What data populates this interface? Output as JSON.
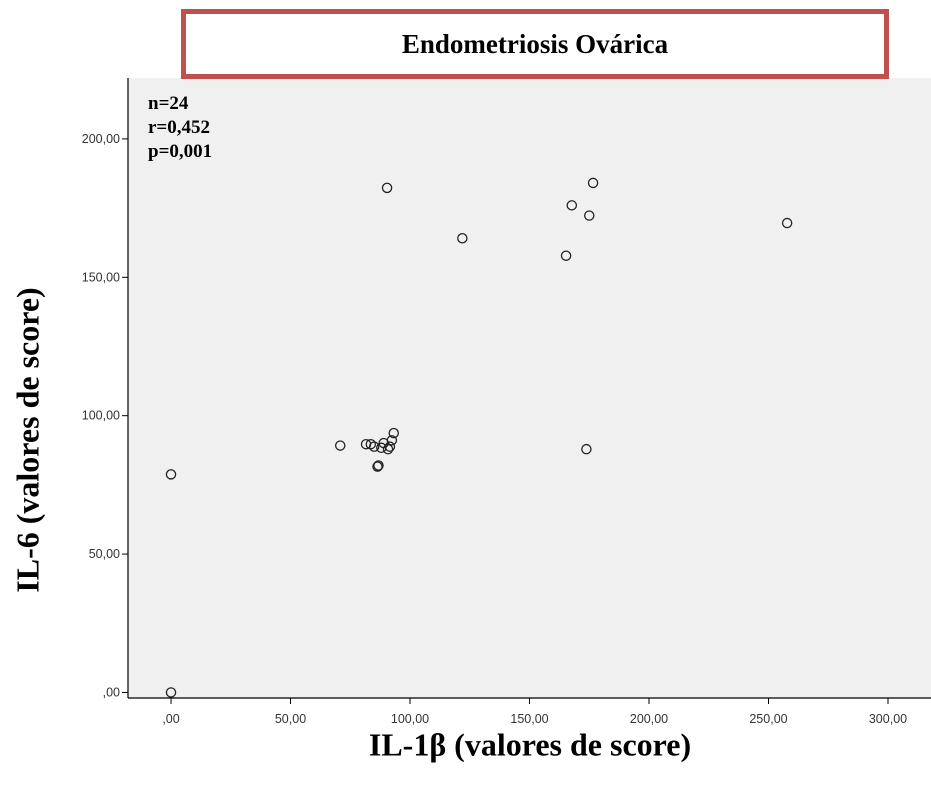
{
  "chart_data": {
    "type": "scatter",
    "title": "Endometriosis Ovárica",
    "xlabel": "IL-1β (valores de score)",
    "ylabel": "IL-6 (valores de score)",
    "xlim": [
      -18,
      318
    ],
    "ylim": [
      -2,
      222
    ],
    "xticks": [
      0,
      50,
      100,
      150,
      200,
      250,
      300
    ],
    "xtick_labels": [
      ",00",
      "50,00",
      "100,00",
      "150,00",
      "200,00",
      "250,00",
      "300,00"
    ],
    "yticks": [
      0,
      50,
      100,
      150,
      200
    ],
    "ytick_labels": [
      ",00",
      "50,00",
      "100,00",
      "150,00",
      "200,00"
    ],
    "grid": false,
    "background_color": "#f0f0f0",
    "marker": "open-circle",
    "annotations": [
      "n=24",
      "r=0,452",
      "p=0,001"
    ],
    "points": [
      {
        "x": 0,
        "y": 0
      },
      {
        "x": 0,
        "y": 78.8
      },
      {
        "x": 70.8,
        "y": 89.2
      },
      {
        "x": 81.6,
        "y": 89.7
      },
      {
        "x": 83.6,
        "y": 89.7
      },
      {
        "x": 85.0,
        "y": 88.8
      },
      {
        "x": 86.4,
        "y": 81.6
      },
      {
        "x": 86.8,
        "y": 82.0
      },
      {
        "x": 88.0,
        "y": 88.4
      },
      {
        "x": 89.0,
        "y": 90.1
      },
      {
        "x": 90.4,
        "y": 182.3
      },
      {
        "x": 90.8,
        "y": 87.9
      },
      {
        "x": 91.6,
        "y": 88.8
      },
      {
        "x": 92.4,
        "y": 91.1
      },
      {
        "x": 93.2,
        "y": 93.7
      },
      {
        "x": 121.9,
        "y": 164.1
      },
      {
        "x": 165.3,
        "y": 157.8
      },
      {
        "x": 167.7,
        "y": 176.0
      },
      {
        "x": 173.8,
        "y": 87.9
      },
      {
        "x": 175.0,
        "y": 172.3
      },
      {
        "x": 176.6,
        "y": 184.1
      },
      {
        "x": 257.8,
        "y": 169.6
      }
    ]
  }
}
